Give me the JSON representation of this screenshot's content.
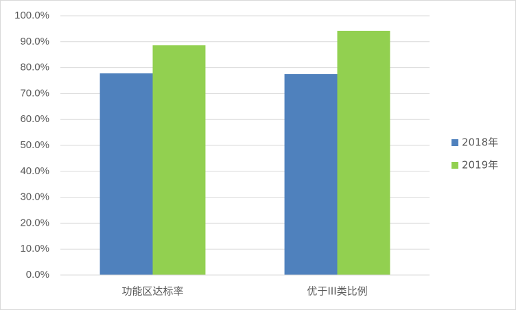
{
  "chart_data": {
    "type": "bar",
    "categories": [
      "功能区达标率",
      "优于III类比例"
    ],
    "series": [
      {
        "name": "2018年",
        "color": "#4f81bd",
        "values": [
          77.8,
          77.5
        ]
      },
      {
        "name": "2019年",
        "color": "#92d050",
        "values": [
          88.6,
          94.2
        ]
      }
    ],
    "ylim": [
      0,
      100
    ],
    "yticks": [
      {
        "value": 0,
        "label": "0.0%"
      },
      {
        "value": 10,
        "label": "10.0%"
      },
      {
        "value": 20,
        "label": "20.0%"
      },
      {
        "value": 30,
        "label": "30.0%"
      },
      {
        "value": 40,
        "label": "40.0%"
      },
      {
        "value": 50,
        "label": "50.0%"
      },
      {
        "value": 60,
        "label": "60.0%"
      },
      {
        "value": 70,
        "label": "70.0%"
      },
      {
        "value": 80,
        "label": "80.0%"
      },
      {
        "value": 90,
        "label": "90.0%"
      },
      {
        "value": 100,
        "label": "100.0%"
      }
    ],
    "grid": true,
    "legend": "right"
  }
}
